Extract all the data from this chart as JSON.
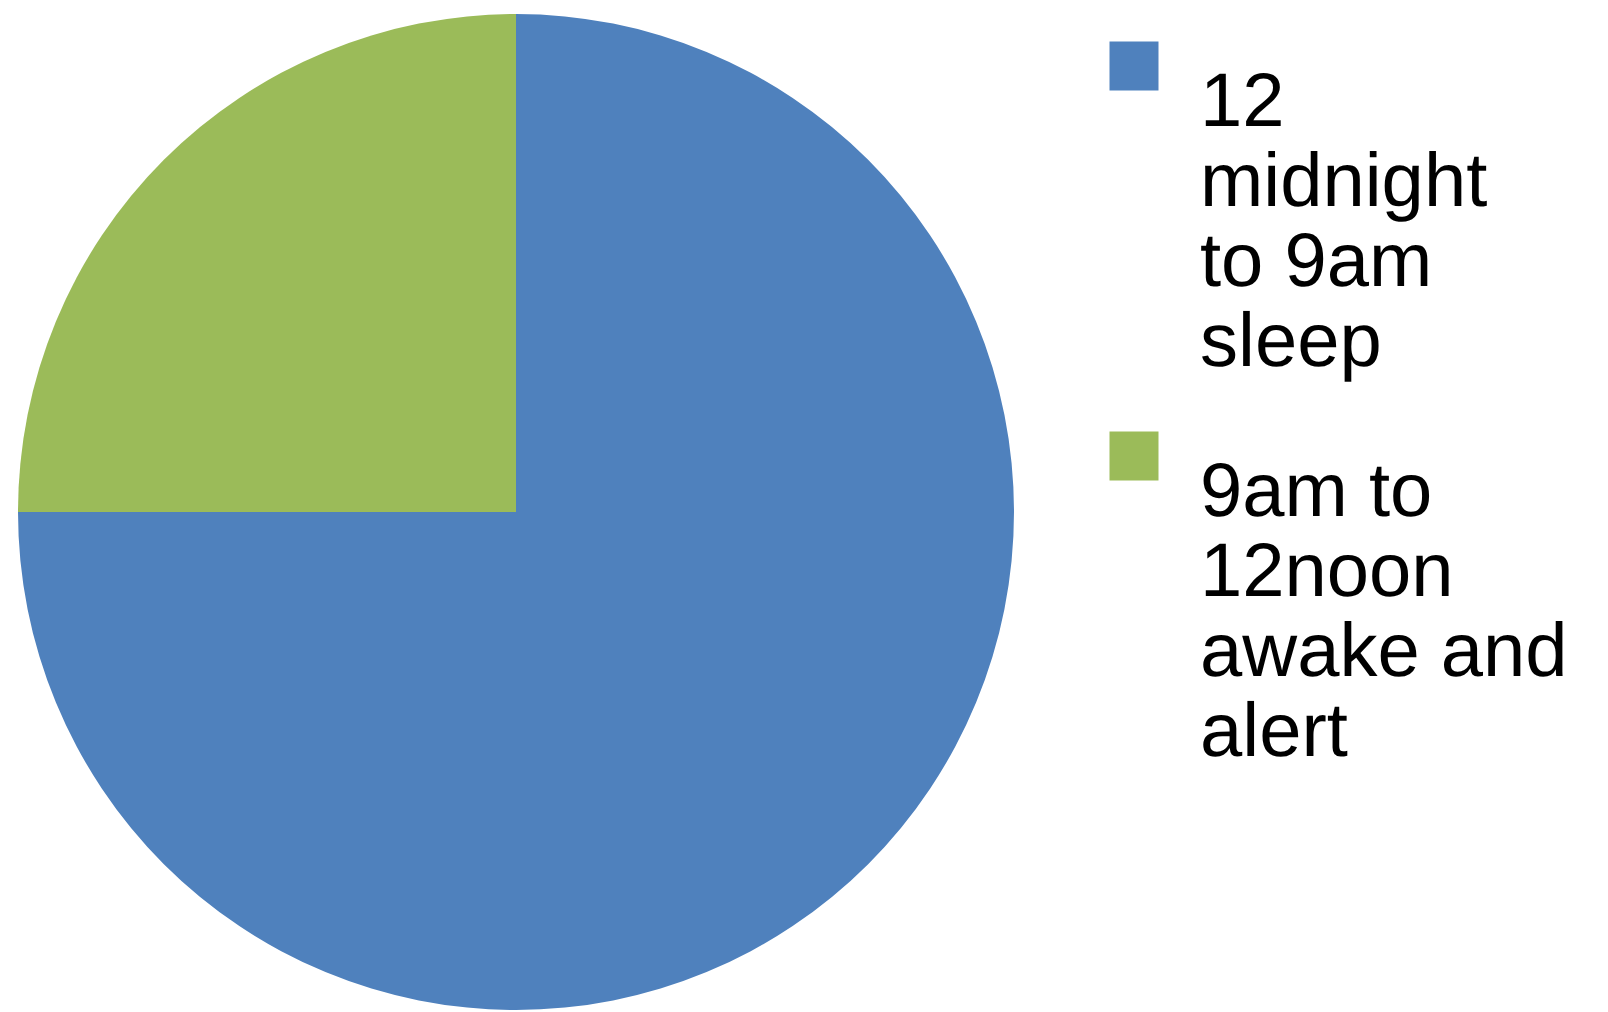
{
  "chart_data": {
    "type": "pie",
    "categories": [
      "12 midnight to 9am sleep",
      "9am to 12noon awake and alert"
    ],
    "values": [
      75,
      25
    ],
    "colors": [
      "#4f81bd",
      "#9bbb59"
    ],
    "legend": "right"
  }
}
